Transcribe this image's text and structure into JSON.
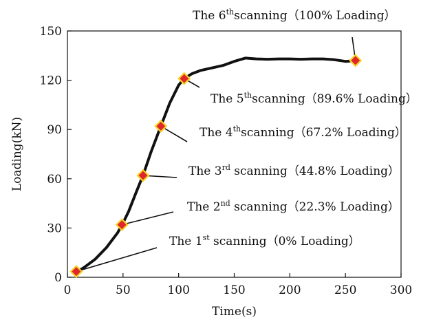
{
  "chart_data": {
    "type": "line",
    "xlabel": "Time(s)",
    "ylabel": "Loading(kN)",
    "xlim": [
      0,
      300
    ],
    "ylim": [
      0,
      150
    ],
    "xticks": [
      "0",
      "50",
      "100",
      "150",
      "200",
      "250",
      "300"
    ],
    "yticks": [
      "0",
      "30",
      "60",
      "90",
      "120",
      "150"
    ],
    "grid": false,
    "series": [
      {
        "x": [
          8,
          15,
          25,
          35,
          45,
          50,
          55,
          62,
          68,
          75,
          84,
          92,
          100,
          105,
          112,
          120,
          130,
          140,
          150,
          160,
          170,
          180,
          190,
          200,
          210,
          220,
          230,
          240,
          250,
          260
        ],
        "values": [
          3,
          6,
          11,
          18,
          27,
          33,
          40,
          52,
          62,
          76,
          92,
          106,
          117,
          121,
          124,
          126,
          127.5,
          129,
          131.5,
          133.5,
          133,
          132.8,
          133,
          133,
          132.8,
          133,
          133,
          132.5,
          131.5,
          132
        ],
        "color": "#111111"
      }
    ],
    "markers": {
      "fill": "#e0262a",
      "stroke": "#f5d327",
      "points": [
        {
          "x": 8,
          "y": 3.5
        },
        {
          "x": 49,
          "y": 32
        },
        {
          "x": 68,
          "y": 62
        },
        {
          "x": 84,
          "y": 92
        },
        {
          "x": 105,
          "y": 121
        },
        {
          "x": 259,
          "y": 132
        }
      ]
    },
    "annotations": [
      {
        "pre": "The 1",
        "sup": "st",
        "post": " scanning（0% Loading）"
      },
      {
        "pre": "The 2",
        "sup": "nd",
        "post": " scanning（22.3% Loading）"
      },
      {
        "pre": "The 3",
        "sup": "rd",
        "post": " scanning（44.8% Loading）"
      },
      {
        "pre": "The 4",
        "sup": "th",
        "post": "scanning（67.2% Loading）"
      },
      {
        "pre": "The 5",
        "sup": "th",
        "post": "scanning（89.6% Loading）"
      },
      {
        "pre": "The 6",
        "sup": "th",
        "post": "scanning（100% Loading）"
      }
    ]
  }
}
